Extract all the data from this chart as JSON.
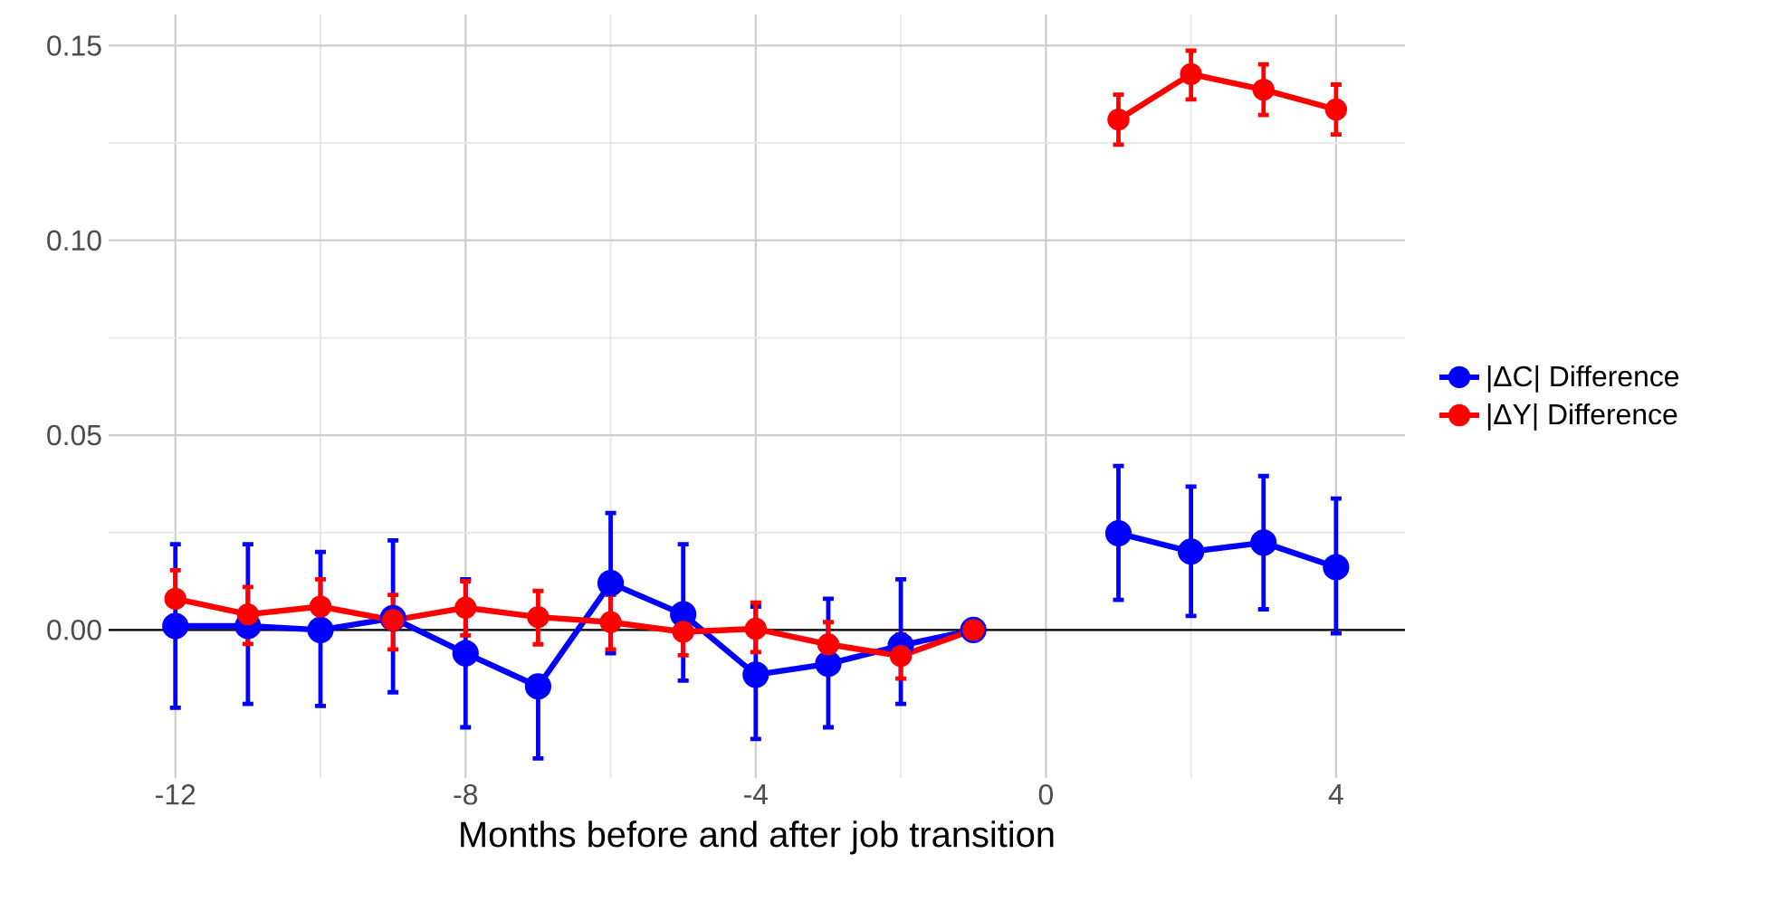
{
  "chart_data": {
    "type": "line",
    "xlabel": "Months before and after job transition",
    "xlim": [
      -12.92,
      4.95
    ],
    "ylim": [
      -0.038,
      0.158
    ],
    "xticks": [
      -12,
      -8,
      -4,
      0,
      4
    ],
    "yticks": [
      {
        "value": 0,
        "label": "0.00"
      },
      {
        "value": 0.05,
        "label": "0.05"
      },
      {
        "value": 0.1,
        "label": "0.10"
      },
      {
        "value": 0.15,
        "label": "0.15"
      }
    ],
    "grid": true,
    "legend": "right",
    "marker": "circle",
    "line_style": "solid",
    "ref_lines": [
      {
        "axis": "y",
        "value": 0,
        "color": "#000000"
      }
    ],
    "series": [
      {
        "name": "|ΔC| Difference",
        "color": "#0000ff",
        "x": [
          -12,
          -11,
          -10,
          -9,
          -8,
          -7,
          -6,
          -5,
          -4,
          -3,
          -2,
          -1,
          0,
          1,
          2,
          3,
          4
        ],
        "values": [
          0.001,
          0.001,
          0.0,
          0.003,
          -0.006,
          -0.0145,
          0.012,
          0.004,
          -0.0115,
          -0.0087,
          -0.004,
          0.0,
          null,
          0.0248,
          0.0201,
          0.0224,
          0.0161
        ],
        "errors": [
          [
            -0.02,
            0.022
          ],
          [
            -0.019,
            0.022
          ],
          [
            -0.0195,
            0.02
          ],
          [
            -0.016,
            0.023
          ],
          [
            -0.025,
            0.013
          ],
          [
            -0.033,
            -0.0145
          ],
          [
            -0.006,
            0.03
          ],
          [
            -0.013,
            0.022
          ],
          [
            -0.028,
            0.006
          ],
          [
            -0.025,
            0.008
          ],
          [
            -0.019,
            0.013
          ],
          null,
          null,
          [
            0.0077,
            0.0421
          ],
          [
            0.0036,
            0.0368
          ],
          [
            0.0053,
            0.0395
          ],
          [
            -0.0009,
            0.0337
          ]
        ]
      },
      {
        "name": "|ΔY| Difference",
        "color": "#ff0000",
        "x": [
          -12,
          -11,
          -10,
          -9,
          -8,
          -7,
          -6,
          -5,
          -4,
          -3,
          -2,
          -1,
          0,
          1,
          2,
          3,
          4
        ],
        "values": [
          0.008,
          0.004,
          0.006,
          0.0025,
          0.0057,
          0.0033,
          0.002,
          -0.0005,
          0.0003,
          -0.0037,
          -0.0067,
          0.0,
          null,
          0.131,
          0.1427,
          0.1387,
          0.1336
        ],
        "errors": [
          [
            0.008,
            0.0153
          ],
          [
            -0.0036,
            0.011
          ],
          [
            0.006,
            0.013
          ],
          [
            -0.005,
            0.009
          ],
          [
            -0.0014,
            0.0125
          ],
          [
            -0.0037,
            0.01
          ],
          [
            -0.005,
            0.009
          ],
          [
            -0.0065,
            0.006
          ],
          [
            -0.0057,
            0.007
          ],
          [
            -0.011,
            0.002
          ],
          [
            -0.0125,
            -0.0012
          ],
          null,
          null,
          [
            0.1246,
            0.1374
          ],
          [
            0.1362,
            0.1487
          ],
          [
            0.1322,
            0.1452
          ],
          [
            0.1272,
            0.14
          ]
        ]
      }
    ]
  }
}
